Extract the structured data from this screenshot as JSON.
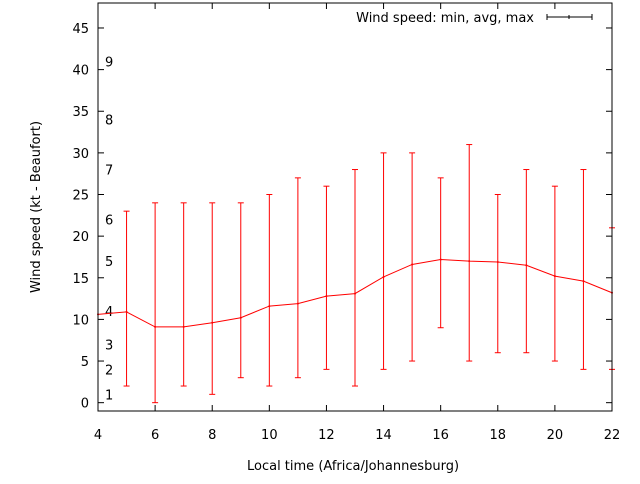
{
  "chart_data": {
    "type": "line",
    "title": "",
    "xlabel": "Local time (Africa/Johannesburg)",
    "ylabel": "Wind speed (kt - Beaufort)",
    "xlim": [
      4,
      22
    ],
    "ylim": [
      -1,
      48
    ],
    "xticks": [
      4,
      6,
      8,
      10,
      12,
      14,
      16,
      18,
      20,
      22
    ],
    "yticks": [
      0,
      5,
      10,
      15,
      20,
      25,
      30,
      35,
      40,
      45
    ],
    "grid": false,
    "legend": {
      "label": "Wind speed: min, avg, max",
      "placement": "top-right"
    },
    "color": "#ff0000",
    "beaufort_labels": [
      {
        "label": "1",
        "kt": 1
      },
      {
        "label": "2",
        "kt": 4
      },
      {
        "label": "3",
        "kt": 7
      },
      {
        "label": "4",
        "kt": 11
      },
      {
        "label": "5",
        "kt": 17
      },
      {
        "label": "6",
        "kt": 22
      },
      {
        "label": "7",
        "kt": 28
      },
      {
        "label": "8",
        "kt": 34
      },
      {
        "label": "9",
        "kt": 41
      }
    ],
    "series": [
      {
        "name": "Wind speed: min, avg, max",
        "x": [
          4,
          5,
          6,
          7,
          8,
          9,
          10,
          11,
          12,
          13,
          14,
          15,
          16,
          17,
          18,
          19,
          20,
          21,
          22
        ],
        "avg": [
          10.6,
          10.9,
          9.1,
          9.1,
          9.6,
          10.2,
          11.6,
          11.9,
          12.8,
          13.1,
          15.1,
          16.6,
          17.2,
          17.0,
          16.9,
          16.5,
          15.2,
          14.6,
          13.2
        ],
        "min": [
          null,
          2,
          0,
          2,
          1,
          3,
          2,
          3,
          4,
          2,
          4,
          5,
          9,
          5,
          6,
          6,
          5,
          4,
          4
        ],
        "max": [
          null,
          23,
          24,
          24,
          24,
          24,
          25,
          27,
          26,
          28,
          30,
          30,
          27,
          31,
          25,
          28,
          26,
          28,
          21
        ]
      }
    ]
  }
}
